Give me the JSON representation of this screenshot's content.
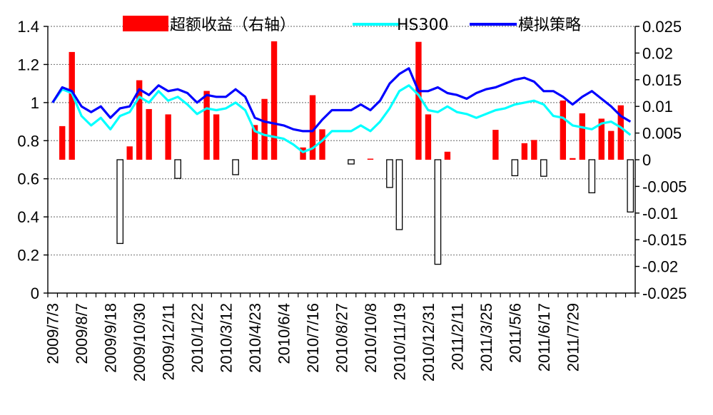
{
  "chart_data": {
    "type": "combo-bar-line",
    "title": "",
    "xlabel": "",
    "ylabel": "",
    "left_axis": {
      "min": 0,
      "max": 1.4,
      "ticks": [
        "0",
        "0.2",
        "0.4",
        "0.6",
        "0.8",
        "1",
        "1.2",
        "1.4"
      ]
    },
    "right_axis": {
      "min": -0.025,
      "max": 0.025,
      "ticks": [
        "-0.025",
        "-0.02",
        "-0.015",
        "-0.01",
        "-0.005",
        "0",
        "0.005",
        "0.01",
        "0.015",
        "0.02",
        "0.025"
      ]
    },
    "grid": "horizontal-dotted",
    "legend_position": "top",
    "x_tick_labels": [
      "2009/7/3",
      "2009/8/7",
      "2009/9/18",
      "2009/10/30",
      "2009/12/11",
      "2010/1/22",
      "2010/3/12",
      "2010/4/23",
      "2010/6/4",
      "2010/7/16",
      "2010/8/27",
      "2010/10/8",
      "2010/11/19",
      "2010/12/31",
      "2011/2/11",
      "2011/3/25",
      "2011/5/6",
      "2011/6/17",
      "2011/7/29"
    ],
    "x_tick_every": 3,
    "series": [
      {
        "name": "超额收益（右轴）",
        "type": "bar",
        "axis": "right",
        "color": "#ff0000",
        "negative_style": "hollow",
        "values": [
          0,
          0.0063,
          0.0202,
          0,
          0,
          0,
          0,
          -0.0157,
          0.0025,
          0.0149,
          0.0095,
          0,
          0.0085,
          -0.0035,
          0,
          0,
          0.0129,
          0.0085,
          0,
          -0.0028,
          0,
          0.0065,
          0.0114,
          0.0222,
          0,
          0,
          0.0023,
          0.0121,
          0.0057,
          0,
          0,
          -0.0008,
          0,
          0.0002,
          0,
          -0.0052,
          -0.0131,
          0,
          0.0221,
          0.0085,
          -0.0196,
          0.0015,
          0,
          0,
          0,
          0,
          0.0056,
          0,
          -0.003,
          0.0031,
          0.0037,
          -0.0031,
          0,
          0.0111,
          0.0003,
          0.0087,
          -0.0062,
          0.0077,
          0.0054,
          0.0102,
          -0.0098
        ]
      },
      {
        "name": "HS300",
        "type": "line",
        "axis": "left",
        "color": "#00ffff",
        "values": [
          1.0,
          1.07,
          1.05,
          0.93,
          0.88,
          0.92,
          0.86,
          0.93,
          0.95,
          1.03,
          1.0,
          1.06,
          1.01,
          1.03,
          0.99,
          0.94,
          0.97,
          0.96,
          0.97,
          1.0,
          0.96,
          0.85,
          0.83,
          0.82,
          0.81,
          0.78,
          0.74,
          0.76,
          0.8,
          0.85,
          0.85,
          0.85,
          0.88,
          0.85,
          0.9,
          0.97,
          1.06,
          1.09,
          1.04,
          0.96,
          0.95,
          0.98,
          0.95,
          0.94,
          0.92,
          0.94,
          0.96,
          0.97,
          0.99,
          1.0,
          1.01,
          0.99,
          0.93,
          0.92,
          0.88,
          0.87,
          0.86,
          0.89,
          0.9,
          0.87,
          0.83
        ]
      },
      {
        "name": "模拟策略",
        "type": "line",
        "axis": "left",
        "color": "#0000ff",
        "values": [
          1.0,
          1.08,
          1.06,
          0.98,
          0.95,
          0.98,
          0.92,
          0.97,
          0.98,
          1.07,
          1.04,
          1.09,
          1.06,
          1.07,
          1.05,
          1.0,
          1.04,
          1.03,
          1.03,
          1.07,
          1.03,
          0.92,
          0.9,
          0.89,
          0.88,
          0.86,
          0.85,
          0.85,
          0.91,
          0.96,
          0.96,
          0.96,
          0.99,
          0.96,
          1.01,
          1.1,
          1.15,
          1.18,
          1.06,
          1.06,
          1.08,
          1.05,
          1.04,
          1.02,
          1.05,
          1.07,
          1.08,
          1.1,
          1.12,
          1.13,
          1.11,
          1.06,
          1.06,
          1.03,
          0.99,
          1.03,
          1.06,
          1.02,
          0.98,
          0.93,
          0.9
        ]
      }
    ]
  }
}
